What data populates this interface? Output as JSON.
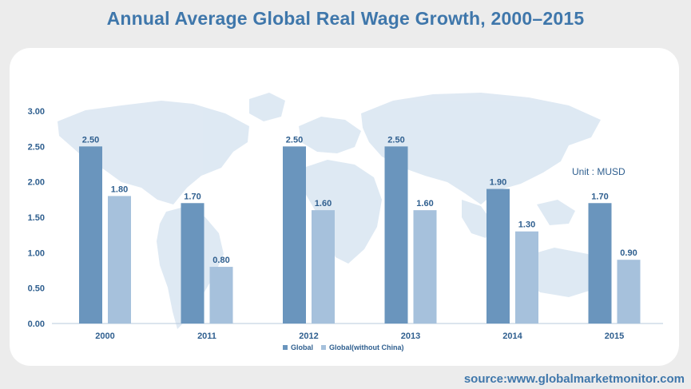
{
  "title": "Annual Average Global Real Wage Growth, 2000–2015",
  "unit_note": "Unit : MUSD",
  "source": "source:www.globalmarketmonitor.com",
  "colors": {
    "title": "#3f77ab",
    "global": "#6a95bd",
    "global_without_china": "#a6c1dc",
    "labels": "#2f5f8f",
    "map": "#dbe7f2"
  },
  "chart_data": {
    "type": "bar",
    "title": "Annual Average Global Real Wage Growth, 2000–2015",
    "categories": [
      "2000",
      "2011",
      "2012",
      "2013",
      "2014",
      "2015"
    ],
    "series": [
      {
        "name": "Global",
        "values": [
          2.5,
          1.7,
          2.5,
          2.5,
          1.9,
          1.7
        ]
      },
      {
        "name": "Global(without China)",
        "values": [
          1.8,
          0.8,
          1.6,
          1.6,
          1.3,
          0.9
        ]
      }
    ],
    "ylim": [
      0,
      3.0
    ],
    "yticks": [
      "0.00",
      "0.50",
      "1.00",
      "1.50",
      "2.00",
      "2.50",
      "3.00"
    ],
    "value_labels": [
      [
        "2.50",
        "1.70",
        "2.50",
        "2.50",
        "1.90",
        "1.70"
      ],
      [
        "1.80",
        "0.80",
        "1.60",
        "1.60",
        "1.30",
        "0.90"
      ]
    ],
    "xlabel": "",
    "ylabel": "",
    "grid": false,
    "legend_position": "bottom-center"
  }
}
